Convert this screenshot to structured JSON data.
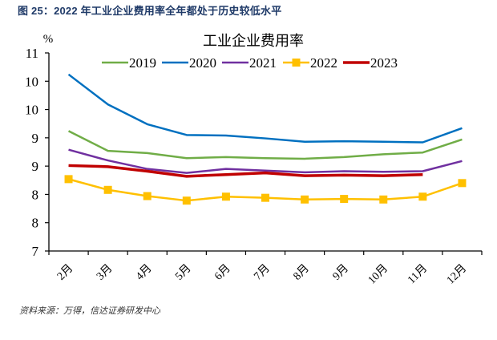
{
  "figure": {
    "title": "图 25：2022 年工业企业费用率全年都处于历史较低水平",
    "source": "资料来源：万得，信达证券研发中心"
  },
  "chart_data": {
    "type": "line",
    "title": "工业企业费用率",
    "ylabel": "%",
    "xlabel": "",
    "ylim": [
      7,
      10.5
    ],
    "ytick_values": [
      7,
      7.5,
      8,
      8.5,
      9,
      9.5,
      10,
      10.5
    ],
    "ytick_labels": [
      "7",
      "8",
      "8",
      "9",
      "9",
      "10",
      "10",
      "11"
    ],
    "categories": [
      "2月",
      "3月",
      "4月",
      "5月",
      "6月",
      "7月",
      "8月",
      "9月",
      "10月",
      "11月",
      "12月"
    ],
    "grid": false,
    "legend": "top-center",
    "series": [
      {
        "name": "2019",
        "color": "#70ad47",
        "marker": "none",
        "values": [
          9.12,
          8.77,
          8.73,
          8.64,
          8.66,
          8.64,
          8.63,
          8.66,
          8.71,
          8.74,
          8.97
        ]
      },
      {
        "name": "2020",
        "color": "#0070c0",
        "marker": "none",
        "values": [
          10.12,
          9.59,
          9.24,
          9.05,
          9.04,
          8.99,
          8.93,
          8.94,
          8.93,
          8.92,
          9.17
        ]
      },
      {
        "name": "2021",
        "color": "#7030a0",
        "marker": "none",
        "values": [
          8.79,
          8.6,
          8.45,
          8.38,
          8.45,
          8.42,
          8.39,
          8.41,
          8.4,
          8.41,
          8.59
        ]
      },
      {
        "name": "2022",
        "color": "#ffc000",
        "marker": "square",
        "values": [
          8.27,
          8.08,
          7.97,
          7.89,
          7.96,
          7.94,
          7.91,
          7.92,
          7.91,
          7.96,
          8.2
        ]
      },
      {
        "name": "2023",
        "color": "#c00000",
        "marker": "none",
        "values": [
          8.51,
          8.49,
          8.41,
          8.32,
          8.35,
          8.38,
          8.33,
          8.34,
          8.33,
          8.35,
          null
        ]
      }
    ]
  }
}
